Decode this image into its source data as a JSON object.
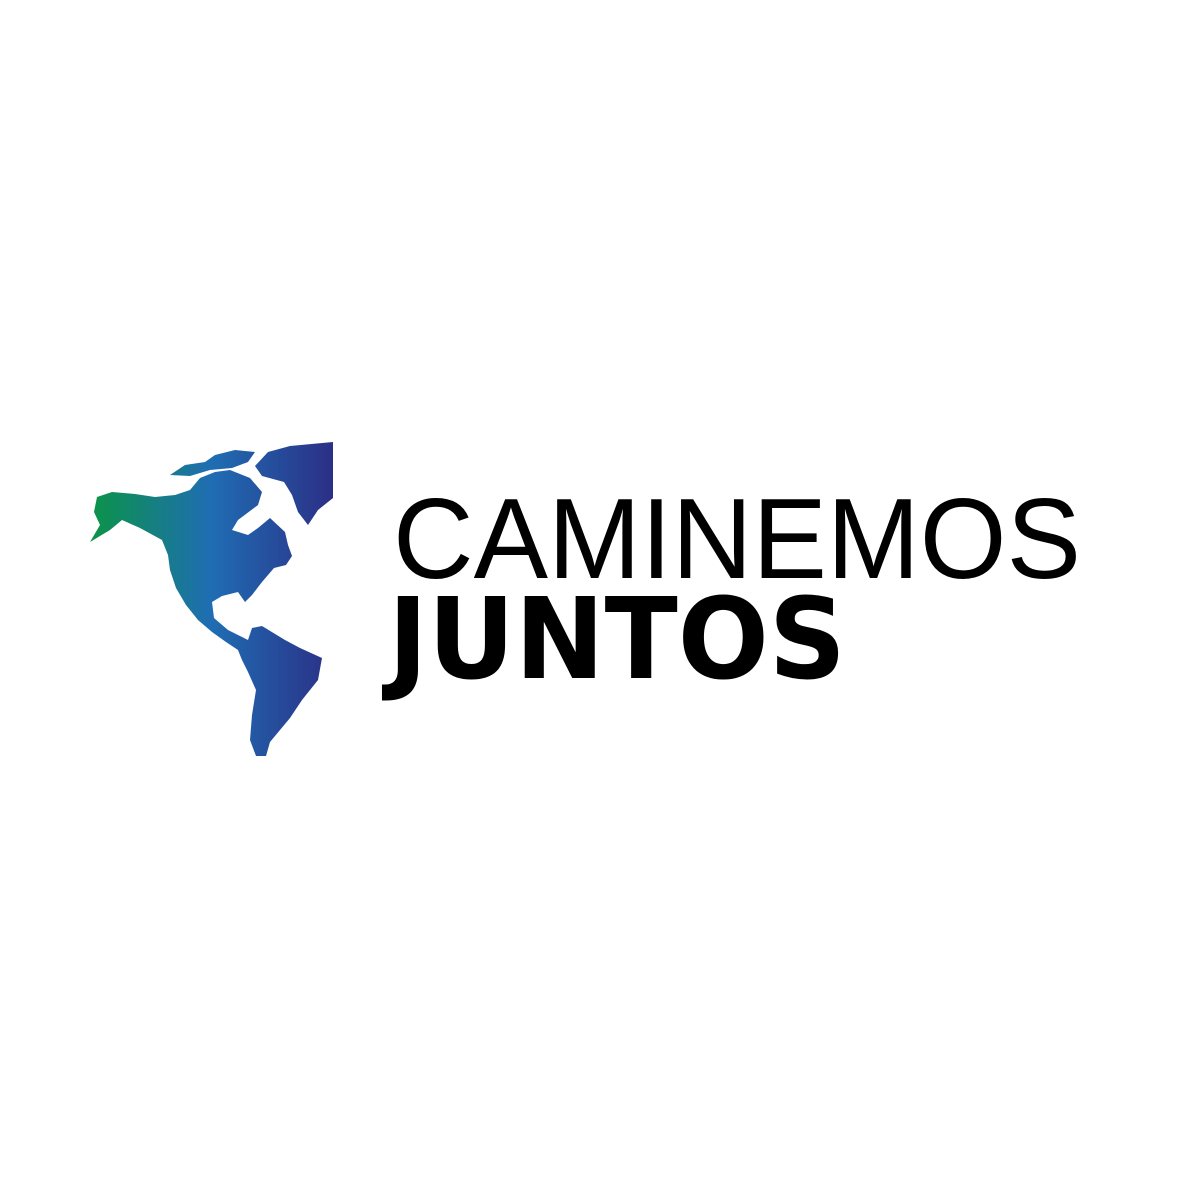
{
  "logo": {
    "line1": "CAMINEMOS",
    "line2": "JUNTOS",
    "map_icon": "americas-map-icon",
    "gradient_colors": [
      "#0b9447",
      "#1f6db3",
      "#2c2f86"
    ]
  }
}
